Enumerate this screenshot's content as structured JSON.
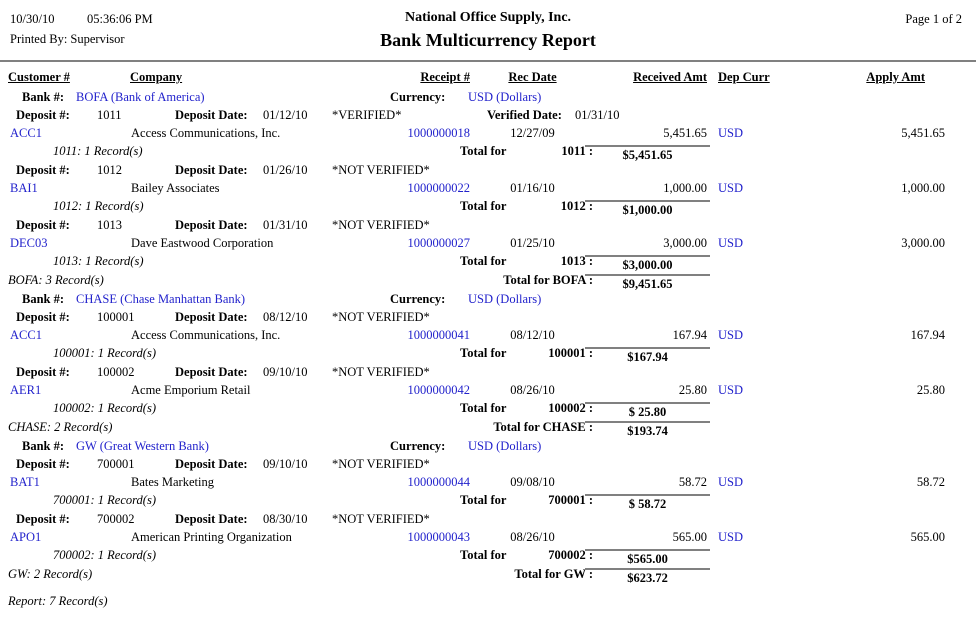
{
  "header": {
    "date": "10/30/10",
    "time": "05:36:06 PM",
    "printed_by": "Printed By: Supervisor",
    "company": "National Office Supply, Inc.",
    "title": "Bank Multicurrency Report",
    "page": "Page 1 of 2"
  },
  "columns": {
    "customer": "Customer #",
    "company": "Company",
    "receipt": "Receipt #",
    "rec_date": "Rec Date",
    "received_amt": "Received Amt",
    "dep_curr": "Dep Curr",
    "apply_amt": "Apply Amt"
  },
  "labels": {
    "bank": "Bank #:",
    "currency": "Currency:",
    "deposit": "Deposit #:",
    "deposit_date": "Deposit Date:",
    "verified_date": "Verified Date:",
    "total_for": "Total for"
  },
  "colors": {
    "link": "#2222CC",
    "rule": "#808080"
  },
  "banks": [
    {
      "name": "BOFA (Bank of America)",
      "currency": "USD (Dollars)",
      "deposits": [
        {
          "number": "1011",
          "date": "01/12/10",
          "status": "*VERIFIED*",
          "verified": "01/31/10",
          "receipts": [
            {
              "customer": "ACC1",
              "company": "Access Communications, Inc.",
              "receipt": "1000000018",
              "rec_date": "12/27/09",
              "received": "5,451.65",
              "curr": "USD",
              "apply": "5,451.65"
            }
          ],
          "records": "1011: 1 Record(s)",
          "total_number": "1011 :",
          "total": "$5,451.65"
        },
        {
          "number": "1012",
          "date": "01/26/10",
          "status": "*NOT VERIFIED*",
          "receipts": [
            {
              "customer": "BAI1",
              "company": "Bailey Associates",
              "receipt": "1000000022",
              "rec_date": "01/16/10",
              "received": "1,000.00",
              "curr": "USD",
              "apply": "1,000.00"
            }
          ],
          "records": "1012: 1 Record(s)",
          "total_number": "1012 :",
          "total": "$1,000.00"
        },
        {
          "number": "1013",
          "date": "01/31/10",
          "status": "*NOT VERIFIED*",
          "receipts": [
            {
              "customer": "DEC03",
              "company": "Dave Eastwood Corporation",
              "receipt": "1000000027",
              "rec_date": "01/25/10",
              "received": "3,000.00",
              "curr": "USD",
              "apply": "3,000.00"
            }
          ],
          "records": "1013: 1 Record(s)",
          "total_number": "1013 :",
          "total": "$3,000.00"
        }
      ],
      "records": "BOFA: 3 Record(s)",
      "total_label": "Total for BOFA :",
      "total": "$9,451.65"
    },
    {
      "name": "CHASE (Chase Manhattan Bank)",
      "currency": "USD (Dollars)",
      "deposits": [
        {
          "number": "100001",
          "date": "08/12/10",
          "status": "*NOT VERIFIED*",
          "receipts": [
            {
              "customer": "ACC1",
              "company": "Access Communications, Inc.",
              "receipt": "1000000041",
              "rec_date": "08/12/10",
              "received": "167.94",
              "curr": "USD",
              "apply": "167.94"
            }
          ],
          "records": "100001: 1 Record(s)",
          "total_number": "100001 :",
          "total": "$167.94"
        },
        {
          "number": "100002",
          "date": "09/10/10",
          "status": "*NOT VERIFIED*",
          "receipts": [
            {
              "customer": "AER1",
              "company": "Acme Emporium Retail",
              "receipt": "1000000042",
              "rec_date": "08/26/10",
              "received": "25.80",
              "curr": "USD",
              "apply": "25.80"
            }
          ],
          "records": "100002: 1 Record(s)",
          "total_number": "100002 :",
          "total": "$ 25.80"
        }
      ],
      "records": "CHASE: 2 Record(s)",
      "total_label": "Total for CHASE :",
      "total": "$193.74"
    },
    {
      "name": "GW (Great Western Bank)",
      "currency": "USD (Dollars)",
      "deposits": [
        {
          "number": "700001",
          "date": "09/10/10",
          "status": "*NOT VERIFIED*",
          "receipts": [
            {
              "customer": "BAT1",
              "company": "Bates Marketing",
              "receipt": "1000000044",
              "rec_date": "09/08/10",
              "received": "58.72",
              "curr": "USD",
              "apply": "58.72"
            }
          ],
          "records": "700001: 1 Record(s)",
          "total_number": "700001 :",
          "total": "$ 58.72"
        },
        {
          "number": "700002",
          "date": "08/30/10",
          "status": "*NOT VERIFIED*",
          "receipts": [
            {
              "customer": "APO1",
              "company": "American Printing Organization",
              "receipt": "1000000043",
              "rec_date": "08/26/10",
              "received": "565.00",
              "curr": "USD",
              "apply": "565.00"
            }
          ],
          "records": "700002: 1 Record(s)",
          "total_number": "700002 :",
          "total": "$565.00"
        }
      ],
      "records": "GW: 2 Record(s)",
      "total_label": "Total for GW :",
      "total": "$623.72"
    }
  ],
  "footer": {
    "records": "Report: 7 Record(s)"
  }
}
